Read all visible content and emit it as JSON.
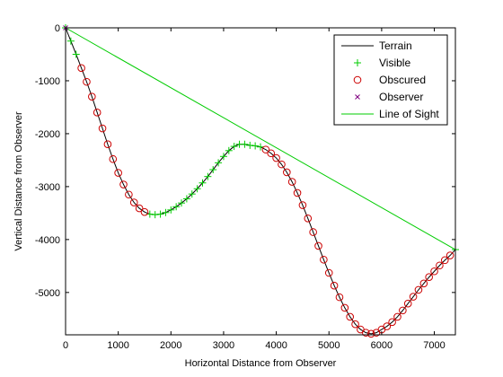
{
  "chart_data": {
    "type": "line",
    "title": "",
    "xlabel": "Horizontal Distance from Observer",
    "ylabel": "Vertical Distance from Observer",
    "xlim": [
      0,
      7400
    ],
    "ylim": [
      -5800,
      0
    ],
    "xticks": [
      0,
      1000,
      2000,
      3000,
      4000,
      5000,
      6000,
      7000
    ],
    "yticks": [
      0,
      -1000,
      -2000,
      -3000,
      -4000,
      -5000
    ],
    "grid": false,
    "legend_position": "top-right",
    "colors": {
      "terrain": "#000000",
      "visible": "#00cc00",
      "obscured": "#cc0000",
      "observer": "#800080",
      "line_of_sight": "#00cc00"
    },
    "series": [
      {
        "name": "Terrain",
        "style": "line",
        "x": [
          0,
          100,
          200,
          300,
          400,
          500,
          600,
          700,
          800,
          900,
          1000,
          1100,
          1200,
          1300,
          1400,
          1500,
          1600,
          1700,
          1800,
          1900,
          2000,
          2100,
          2200,
          2300,
          2400,
          2500,
          2600,
          2700,
          2800,
          2900,
          3000,
          3100,
          3200,
          3300,
          3400,
          3500,
          3600,
          3700,
          3800,
          3900,
          4000,
          4100,
          4200,
          4300,
          4400,
          4500,
          4600,
          4700,
          4800,
          4900,
          5000,
          5100,
          5200,
          5300,
          5400,
          5500,
          5600,
          5700,
          5800,
          5900,
          6000,
          6100,
          6200,
          6300,
          6400,
          6500,
          6600,
          6700,
          6800,
          6900,
          7000,
          7100,
          7200,
          7300,
          7400
        ],
        "y": [
          0,
          -250,
          -500,
          -760,
          -1020,
          -1300,
          -1600,
          -1900,
          -2200,
          -2480,
          -2740,
          -2960,
          -3150,
          -3300,
          -3410,
          -3480,
          -3520,
          -3530,
          -3520,
          -3490,
          -3440,
          -3380,
          -3310,
          -3230,
          -3140,
          -3040,
          -2930,
          -2810,
          -2680,
          -2550,
          -2430,
          -2320,
          -2240,
          -2200,
          -2200,
          -2220,
          -2230,
          -2250,
          -2300,
          -2370,
          -2460,
          -2580,
          -2730,
          -2910,
          -3120,
          -3350,
          -3600,
          -3860,
          -4120,
          -4380,
          -4630,
          -4870,
          -5090,
          -5290,
          -5460,
          -5600,
          -5700,
          -5760,
          -5780,
          -5760,
          -5700,
          -5640,
          -5560,
          -5460,
          -5340,
          -5210,
          -5080,
          -4950,
          -4830,
          -4710,
          -4600,
          -4490,
          -4390,
          -4300,
          -4190
        ]
      },
      {
        "name": "Visible",
        "style": "markers",
        "marker": "+",
        "x": [
          0,
          100,
          200,
          1600,
          1700,
          1800,
          1900,
          2000,
          2100,
          2200,
          2300,
          2400,
          2500,
          2600,
          2700,
          2800,
          2900,
          3000,
          3100,
          3200,
          3300,
          3400,
          3500,
          3600,
          3700,
          7400
        ],
        "y": [
          0,
          -250,
          -500,
          -3520,
          -3530,
          -3520,
          -3490,
          -3440,
          -3380,
          -3310,
          -3230,
          -3140,
          -3040,
          -2930,
          -2810,
          -2680,
          -2550,
          -2430,
          -2320,
          -2240,
          -2200,
          -2200,
          -2220,
          -2230,
          -2250,
          -4190
        ]
      },
      {
        "name": "Obscured",
        "style": "markers",
        "marker": "o",
        "x": [
          300,
          400,
          500,
          600,
          700,
          800,
          900,
          1000,
          1100,
          1200,
          1300,
          1400,
          1500,
          3800,
          3900,
          4000,
          4100,
          4200,
          4300,
          4400,
          4500,
          4600,
          4700,
          4800,
          4900,
          5000,
          5100,
          5200,
          5300,
          5400,
          5500,
          5600,
          5700,
          5800,
          5900,
          6000,
          6100,
          6200,
          6300,
          6400,
          6500,
          6600,
          6700,
          6800,
          6900,
          7000,
          7100,
          7200,
          7300
        ],
        "y": [
          -760,
          -1020,
          -1300,
          -1600,
          -1900,
          -2200,
          -2480,
          -2740,
          -2960,
          -3150,
          -3300,
          -3410,
          -3480,
          -2300,
          -2370,
          -2460,
          -2580,
          -2730,
          -2910,
          -3120,
          -3350,
          -3600,
          -3860,
          -4120,
          -4380,
          -4630,
          -4870,
          -5090,
          -5290,
          -5460,
          -5600,
          -5700,
          -5760,
          -5780,
          -5760,
          -5700,
          -5640,
          -5560,
          -5460,
          -5340,
          -5210,
          -5080,
          -4950,
          -4830,
          -4710,
          -4600,
          -4490,
          -4390,
          -4300
        ]
      },
      {
        "name": "Observer",
        "style": "markers",
        "marker": "x",
        "x": [
          0
        ],
        "y": [
          0
        ]
      },
      {
        "name": "Line of Sight",
        "style": "line",
        "x": [
          0,
          7400
        ],
        "y": [
          0,
          -4190
        ]
      }
    ]
  }
}
